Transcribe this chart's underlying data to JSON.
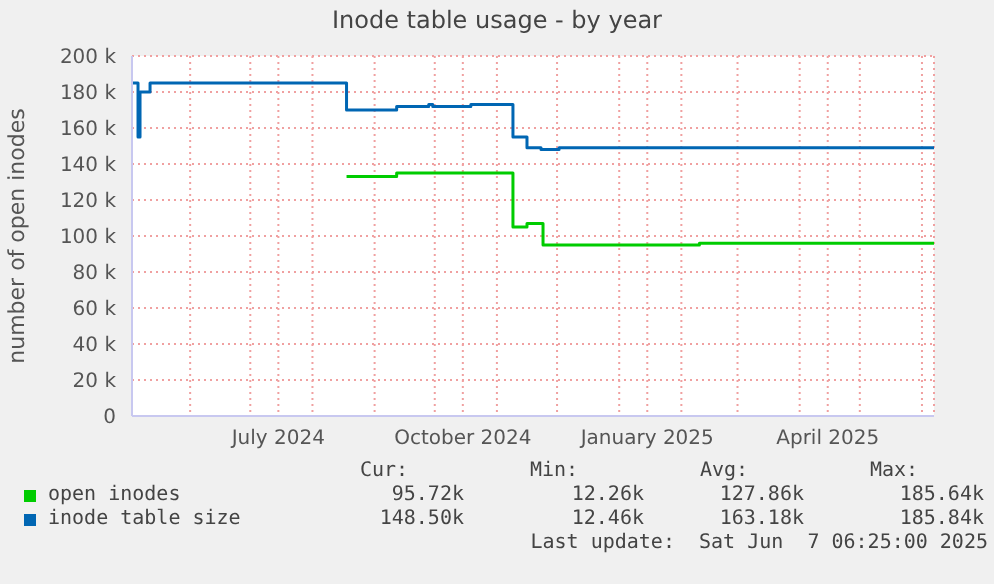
{
  "chart_data": {
    "type": "step",
    "title": "Inode table usage - by year",
    "ylabel": "number of open inodes",
    "x": [
      "2024-05-03",
      "2024-05-06",
      "2024-05-07",
      "2024-05-12",
      "2024-08-18",
      "2024-09-12",
      "2024-09-28",
      "2024-09-30",
      "2024-10-19",
      "2024-11-09",
      "2024-11-16",
      "2024-11-23",
      "2024-11-24",
      "2024-12-02",
      "2025-02-10",
      "2025-06-07"
    ],
    "series": [
      {
        "name": "open inodes",
        "color": "#00cc00",
        "values": [
          null,
          null,
          null,
          null,
          133000,
          135000,
          135000,
          135000,
          135000,
          105000,
          107000,
          107000,
          95000,
          95000,
          96000,
          96000
        ]
      },
      {
        "name": "inode table size",
        "color": "#0066b3",
        "values": [
          185000,
          155000,
          180000,
          185000,
          170000,
          172000,
          173000,
          172000,
          173000,
          155000,
          149000,
          148000,
          148000,
          149000,
          149000,
          149000
        ]
      }
    ],
    "xlim": [
      "2024-05-03",
      "2025-06-07"
    ],
    "xticks": [
      {
        "value": "2024-06-01",
        "label": null
      },
      {
        "value": "2024-07-01",
        "label": null
      },
      {
        "value": "2024-07-15",
        "label": "July 2024"
      },
      {
        "value": "2024-08-01",
        "label": null
      },
      {
        "value": "2024-09-01",
        "label": null
      },
      {
        "value": "2024-10-01",
        "label": null
      },
      {
        "value": "2024-10-15",
        "label": "October 2024"
      },
      {
        "value": "2024-11-01",
        "label": null
      },
      {
        "value": "2024-12-01",
        "label": null
      },
      {
        "value": "2025-01-01",
        "label": null
      },
      {
        "value": "2025-01-15",
        "label": "January 2025"
      },
      {
        "value": "2025-02-01",
        "label": null
      },
      {
        "value": "2025-03-01",
        "label": null
      },
      {
        "value": "2025-04-01",
        "label": null
      },
      {
        "value": "2025-04-15",
        "label": "April 2025"
      },
      {
        "value": "2025-05-01",
        "label": null
      },
      {
        "value": "2025-06-01",
        "label": null
      }
    ],
    "ylim": [
      0,
      200000
    ],
    "yticks": [
      {
        "value": 0,
        "label": "0"
      },
      {
        "value": 20000,
        "label": "20 k"
      },
      {
        "value": 40000,
        "label": "40 k"
      },
      {
        "value": 60000,
        "label": "60 k"
      },
      {
        "value": 80000,
        "label": "80 k"
      },
      {
        "value": 100000,
        "label": "100 k"
      },
      {
        "value": 120000,
        "label": "120 k"
      },
      {
        "value": 140000,
        "label": "140 k"
      },
      {
        "value": 160000,
        "label": "160 k"
      },
      {
        "value": 180000,
        "label": "180 k"
      },
      {
        "value": 200000,
        "label": "200 k"
      }
    ],
    "grid": true,
    "legend": "bottom",
    "annotations": [
      "Cur:",
      "Min:",
      "Avg:",
      "Max:",
      "95.72k",
      "12.26k",
      "127.86k",
      "185.64k",
      "148.50k",
      "12.46k",
      "163.18k",
      "185.84k",
      "Last update:  Sat Jun  7 06:25:00 2025"
    ]
  }
}
